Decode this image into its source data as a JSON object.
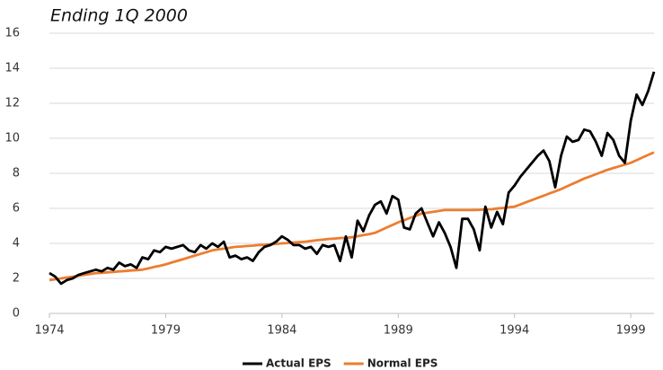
{
  "chart_data": {
    "type": "line",
    "title": "Ending 1Q 2000",
    "x": [
      1974,
      1974.25,
      1974.5,
      1974.75,
      1975,
      1975.25,
      1975.5,
      1975.75,
      1976,
      1976.25,
      1976.5,
      1976.75,
      1977,
      1977.25,
      1977.5,
      1977.75,
      1978,
      1978.25,
      1978.5,
      1978.75,
      1979,
      1979.25,
      1979.5,
      1979.75,
      1980,
      1980.25,
      1980.5,
      1980.75,
      1981,
      1981.25,
      1981.5,
      1981.75,
      1982,
      1982.25,
      1982.5,
      1982.75,
      1983,
      1983.25,
      1983.5,
      1983.75,
      1984,
      1984.25,
      1984.5,
      1984.75,
      1985,
      1985.25,
      1985.5,
      1985.75,
      1986,
      1986.25,
      1986.5,
      1986.75,
      1987,
      1987.25,
      1987.5,
      1987.75,
      1988,
      1988.25,
      1988.5,
      1988.75,
      1989,
      1989.25,
      1989.5,
      1989.75,
      1990,
      1990.25,
      1990.5,
      1990.75,
      1991,
      1991.25,
      1991.5,
      1991.75,
      1992,
      1992.25,
      1992.5,
      1992.75,
      1993,
      1993.25,
      1993.5,
      1993.75,
      1994,
      1994.25,
      1994.5,
      1994.75,
      1995,
      1995.25,
      1995.5,
      1995.75,
      1996,
      1996.25,
      1996.5,
      1996.75,
      1997,
      1997.25,
      1997.5,
      1997.75,
      1998,
      1998.25,
      1998.5,
      1998.75,
      1999,
      1999.25,
      1999.5,
      1999.75,
      2000
    ],
    "series": [
      {
        "name": "Actual EPS",
        "color": "#000000",
        "values": [
          2.3,
          2.1,
          1.7,
          1.9,
          2.0,
          2.2,
          2.3,
          2.4,
          2.5,
          2.4,
          2.6,
          2.5,
          2.9,
          2.7,
          2.8,
          2.6,
          3.2,
          3.1,
          3.6,
          3.5,
          3.8,
          3.7,
          3.8,
          3.9,
          3.6,
          3.5,
          3.9,
          3.7,
          4.0,
          3.8,
          4.1,
          3.2,
          3.3,
          3.1,
          3.2,
          3.0,
          3.5,
          3.8,
          3.9,
          4.1,
          4.4,
          4.2,
          3.9,
          3.9,
          3.7,
          3.8,
          3.4,
          3.9,
          3.8,
          3.9,
          3.0,
          4.4,
          3.2,
          5.3,
          4.7,
          5.6,
          6.2,
          6.4,
          5.7,
          6.7,
          6.5,
          4.9,
          4.8,
          5.7,
          6.0,
          5.2,
          4.4,
          5.2,
          4.6,
          3.8,
          2.6,
          5.4,
          5.4,
          4.8,
          3.6,
          6.1,
          4.9,
          5.8,
          5.1,
          6.9,
          7.3,
          7.8,
          8.2,
          8.6,
          9.0,
          9.3,
          8.7,
          7.2,
          9.0,
          10.1,
          9.8,
          9.9,
          10.5,
          10.4,
          9.8,
          9.0,
          10.3,
          9.9,
          9.0,
          8.6,
          11.0,
          12.5,
          11.9,
          12.7,
          13.8
        ]
      },
      {
        "name": "Normal EPS",
        "color": "#ed7d31",
        "values": [
          1.9,
          1.95,
          2.0,
          2.05,
          2.1,
          2.15,
          2.2,
          2.25,
          2.3,
          2.32,
          2.35,
          2.37,
          2.4,
          2.42,
          2.45,
          2.47,
          2.5,
          2.57,
          2.65,
          2.72,
          2.8,
          2.9,
          3.0,
          3.1,
          3.2,
          3.3,
          3.4,
          3.5,
          3.6,
          3.65,
          3.7,
          3.75,
          3.8,
          3.82,
          3.85,
          3.87,
          3.9,
          3.92,
          3.95,
          3.97,
          4.0,
          4.02,
          4.05,
          4.07,
          4.1,
          4.14,
          4.18,
          4.21,
          4.25,
          4.27,
          4.3,
          4.32,
          4.35,
          4.41,
          4.47,
          4.53,
          4.6,
          4.75,
          4.9,
          5.05,
          5.2,
          5.32,
          5.45,
          5.57,
          5.7,
          5.75,
          5.8,
          5.85,
          5.9,
          5.9,
          5.9,
          5.9,
          5.9,
          5.91,
          5.92,
          5.94,
          5.95,
          5.99,
          6.02,
          6.06,
          6.1,
          6.22,
          6.35,
          6.47,
          6.6,
          6.72,
          6.85,
          6.97,
          7.1,
          7.25,
          7.4,
          7.55,
          7.7,
          7.82,
          7.95,
          8.07,
          8.2,
          8.3,
          8.4,
          8.5,
          8.6,
          8.75,
          8.9,
          9.05,
          9.2
        ]
      }
    ],
    "xlim": [
      1974,
      2000
    ],
    "xticks": [
      1974,
      1979,
      1984,
      1989,
      1994,
      1999
    ],
    "ylim": [
      0,
      16
    ],
    "yticks": [
      0,
      2,
      4,
      6,
      8,
      10,
      12,
      14,
      16
    ],
    "grid": true
  }
}
